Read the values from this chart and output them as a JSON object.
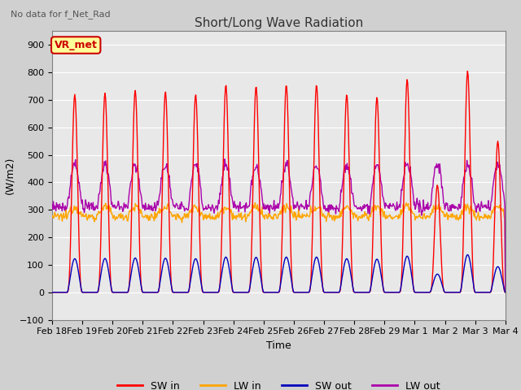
{
  "title": "Short/Long Wave Radiation",
  "subtitle": "No data for f_Net_Rad",
  "xlabel": "Time",
  "ylabel": "(W/m2)",
  "ylim": [
    -100,
    950
  ],
  "yticks": [
    -100,
    0,
    100,
    200,
    300,
    400,
    500,
    600,
    700,
    800,
    900
  ],
  "date_labels": [
    "Feb 18",
    "Feb 19",
    "Feb 20",
    "Feb 21",
    "Feb 22",
    "Feb 23",
    "Feb 24",
    "Feb 25",
    "Feb 26",
    "Feb 27",
    "Feb 28",
    "Feb 29",
    "Mar 1",
    "Mar 2",
    "Mar 3",
    "Mar 4"
  ],
  "legend_labels": [
    "SW in",
    "LW in",
    "SW out",
    "LW out"
  ],
  "legend_colors": [
    "#ff0000",
    "#ffa500",
    "#0000bb",
    "#aa00aa"
  ],
  "vr_met_box_color": "#ffff99",
  "vr_met_text_color": "#cc0000",
  "figure_facecolor": "#d0d0d0",
  "plot_background": "#e8e8e8",
  "sw_in_peaks": [
    720,
    725,
    735,
    730,
    720,
    755,
    750,
    755,
    755,
    720,
    710,
    775,
    390,
    805,
    550
  ],
  "sw_out_ratio": 0.17,
  "lw_in_base": 275,
  "lw_in_boost": 35,
  "lw_out_base": 310,
  "lw_out_boost": 155
}
